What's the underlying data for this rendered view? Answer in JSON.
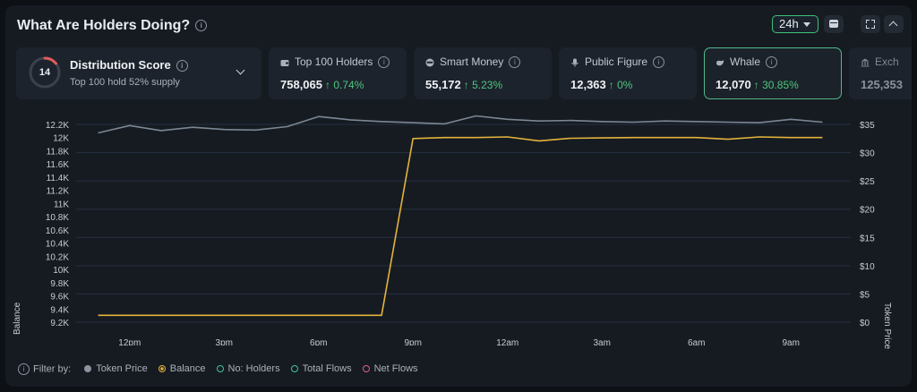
{
  "header": {
    "title": "What Are Holders Doing?",
    "time_range": "24h"
  },
  "distribution": {
    "score": "14",
    "title": "Distribution Score",
    "subtitle": "Top 100 hold 52% supply"
  },
  "cards": [
    {
      "label": "Top 100 Holders",
      "value": "758,065",
      "change": "0.74%",
      "icon": "wallet-icon"
    },
    {
      "label": "Smart Money",
      "value": "55,172",
      "change": "5.23%",
      "icon": "glasses-icon"
    },
    {
      "label": "Public Figure",
      "value": "12,363",
      "change": "0%",
      "icon": "microphone-icon"
    },
    {
      "label": "Whale",
      "value": "12,070",
      "change": "30.85%",
      "icon": "whale-icon",
      "active": true
    },
    {
      "label": "Exch",
      "value": "125,353",
      "icon": "bank-icon"
    }
  ],
  "chart_data": {
    "type": "line",
    "xlabel": "",
    "ylabel": "Balance",
    "y2label": "Token Price",
    "x_ticks": [
      "12pm",
      "3pm",
      "6pm",
      "9pm",
      "12am",
      "3am",
      "6am",
      "9am"
    ],
    "y_ticks": [
      "9.2K",
      "9.4K",
      "9.6K",
      "9.8K",
      "10K",
      "10.2K",
      "10.4K",
      "10.6K",
      "10.8K",
      "11K",
      "11.2K",
      "11.4K",
      "11.6K",
      "11.8K",
      "12K",
      "12.2K"
    ],
    "y2_ticks": [
      "$0",
      "$5",
      "$10",
      "$15",
      "$20",
      "$25",
      "$30",
      "$35"
    ],
    "ylim": [
      9200,
      12200
    ],
    "y2lim": [
      0,
      35
    ],
    "grid": true,
    "series": [
      {
        "name": "Token Price",
        "color": "#7b8794",
        "axis": "right",
        "x": [
          11,
          12,
          13,
          14,
          15,
          16,
          17,
          18,
          19,
          20,
          21,
          22,
          23,
          24,
          25,
          26,
          27,
          28,
          29,
          30,
          31,
          32,
          33,
          34
        ],
        "values": [
          33.5,
          34.8,
          33.9,
          34.5,
          34.1,
          34.0,
          34.6,
          36.4,
          35.8,
          35.5,
          35.3,
          35.1,
          36.5,
          35.9,
          35.6,
          35.7,
          35.5,
          35.4,
          35.6,
          35.5,
          35.4,
          35.3,
          35.9,
          35.4
        ]
      },
      {
        "name": "Balance",
        "color": "#e3b33b",
        "axis": "left",
        "x": [
          11,
          12,
          13,
          14,
          15,
          16,
          17,
          18,
          19,
          20,
          21,
          22,
          23,
          24,
          25,
          26,
          27,
          28,
          29,
          30,
          31,
          32,
          33,
          34
        ],
        "values": [
          9305,
          9305,
          9305,
          9305,
          9305,
          9305,
          9305,
          9305,
          9305,
          9305,
          11985,
          12000,
          12000,
          12010,
          11950,
          11990,
          11995,
          12000,
          12000,
          12000,
          11975,
          12010,
          12000,
          12000
        ]
      }
    ]
  },
  "filters": {
    "label": "Filter by:",
    "items": [
      {
        "label": "Token Price",
        "color": "#8b949e",
        "style": "filled"
      },
      {
        "label": "Balance",
        "color": "#e3b33b",
        "style": "ring-filled"
      },
      {
        "label": "No: Holders",
        "color": "#3fc2a0",
        "style": "ring"
      },
      {
        "label": "Total Flows",
        "color": "#3fc2a0",
        "style": "ring"
      },
      {
        "label": "Net Flows",
        "color": "#e05d8f",
        "style": "ring"
      }
    ]
  }
}
